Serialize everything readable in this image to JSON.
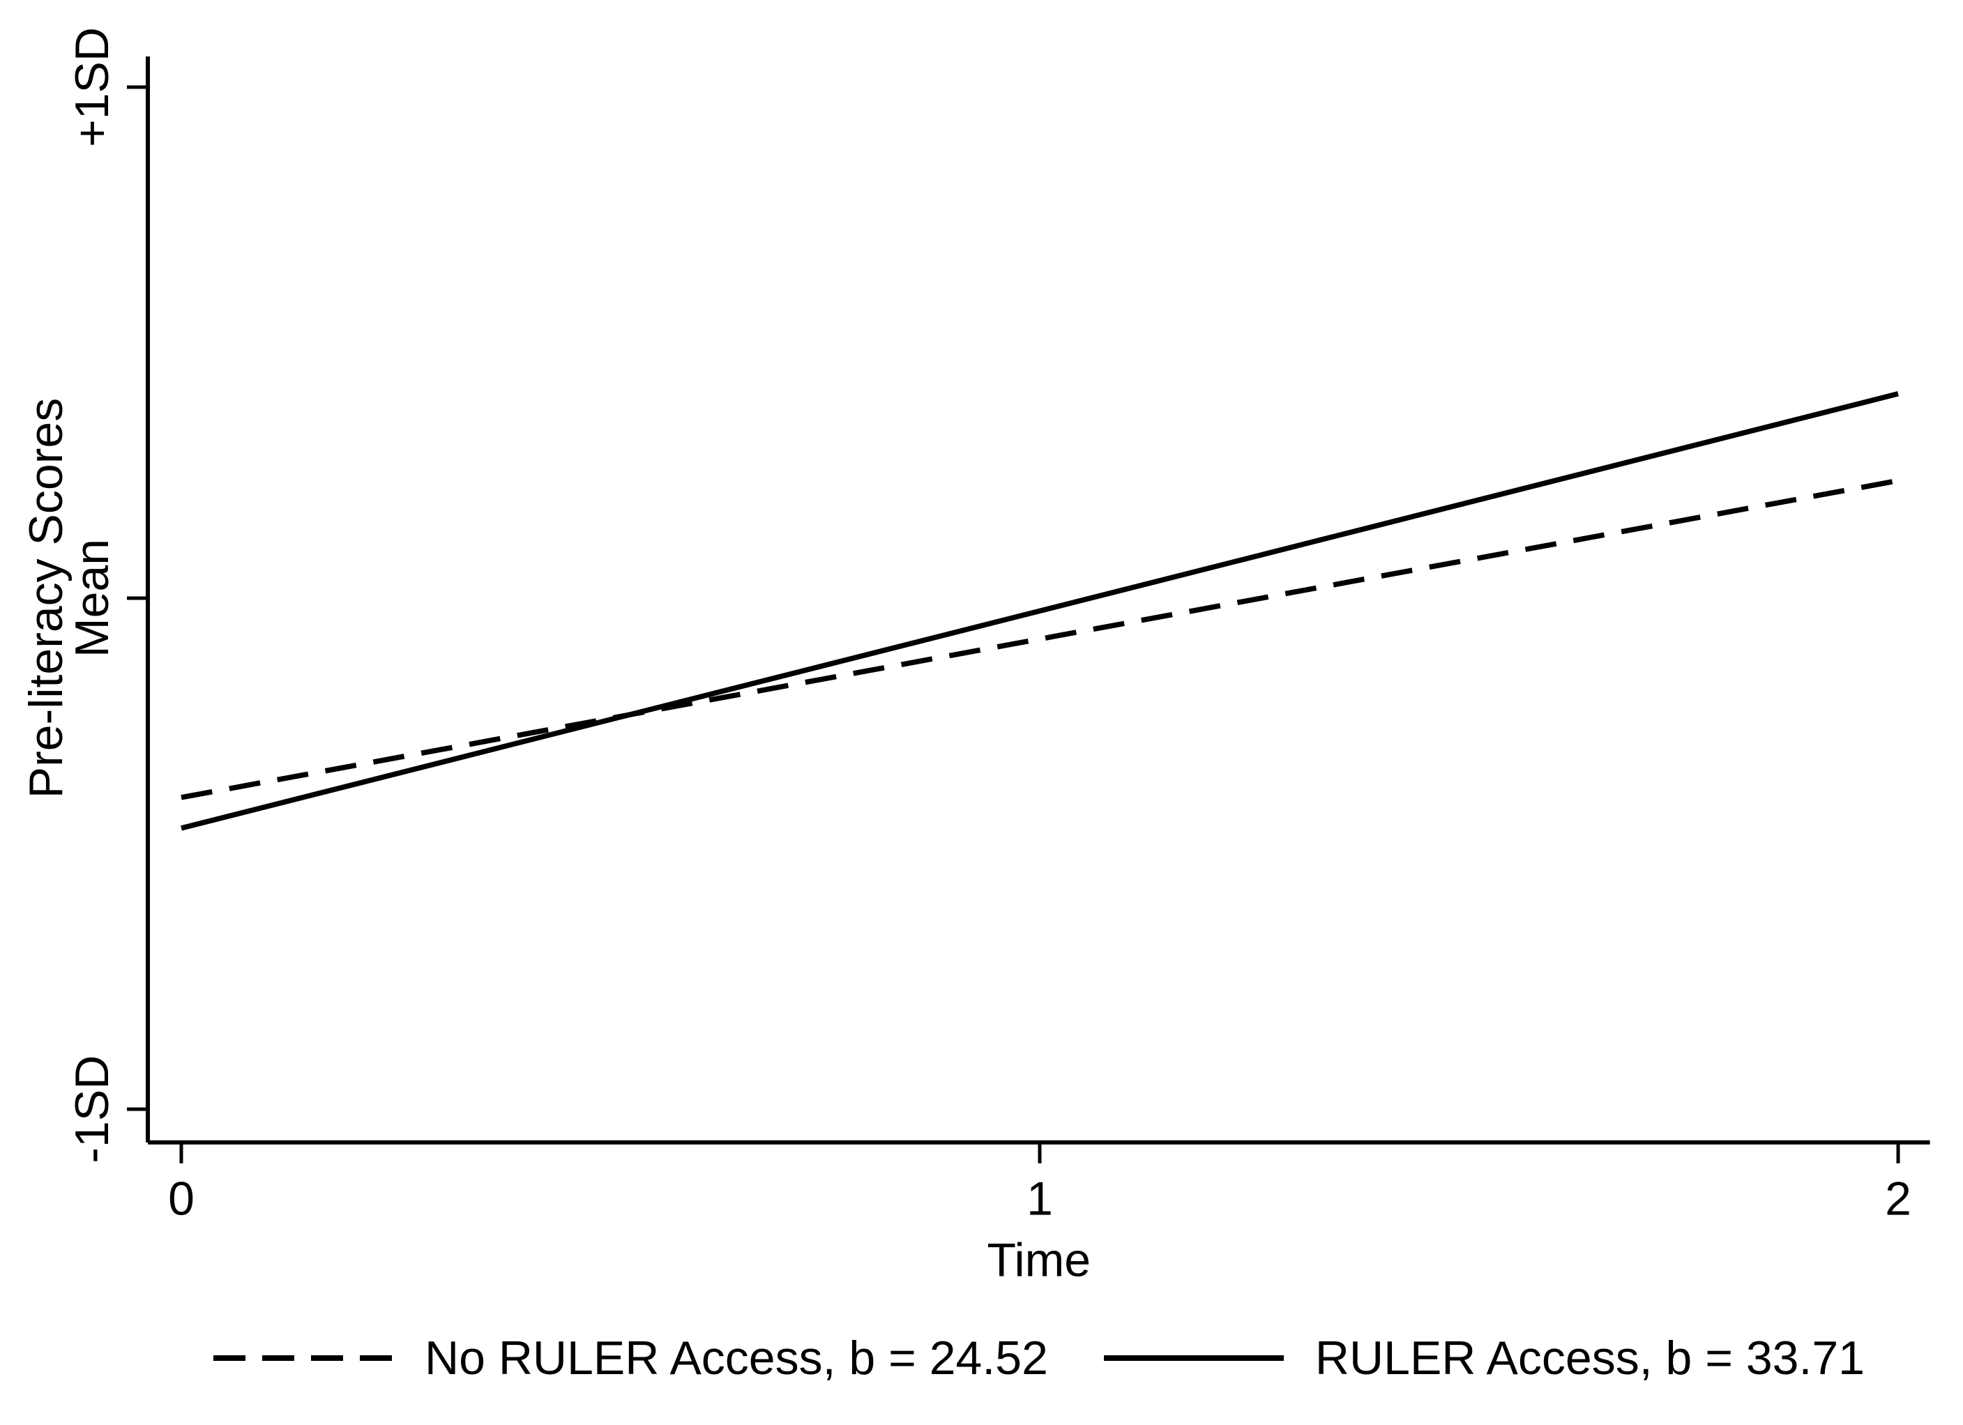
{
  "figure": {
    "background_color": "#ffffff",
    "ink_color": "#000000"
  },
  "chart_data": {
    "type": "line",
    "title": "",
    "xlabel": "Time",
    "ylabel": "Pre-literacy Scores",
    "x_ticks": [
      {
        "value": 0,
        "label": "0"
      },
      {
        "value": 1,
        "label": "1"
      },
      {
        "value": 2,
        "label": "2"
      }
    ],
    "y_ticks": [
      {
        "value": -1,
        "label": "-1SD"
      },
      {
        "value": 0,
        "label": "Mean"
      },
      {
        "value": 1,
        "label": "+1SD"
      }
    ],
    "xlim": [
      -0.039,
      2.037
    ],
    "ylim": [
      -1.065,
      1.06
    ],
    "y_unit": "standard deviations of pre-literacy scores relative to mean",
    "grid": false,
    "legend_position": "bottom",
    "series": [
      {
        "name": "No RULER Access, b = 24.52",
        "b": 24.52,
        "line_style": "dashed",
        "x": [
          0,
          2
        ],
        "y": [
          -0.39,
          0.23
        ]
      },
      {
        "name": "RULER Access, b = 33.71",
        "b": 33.71,
        "line_style": "solid",
        "x": [
          0,
          2
        ],
        "y": [
          -0.45,
          0.4
        ]
      }
    ]
  }
}
